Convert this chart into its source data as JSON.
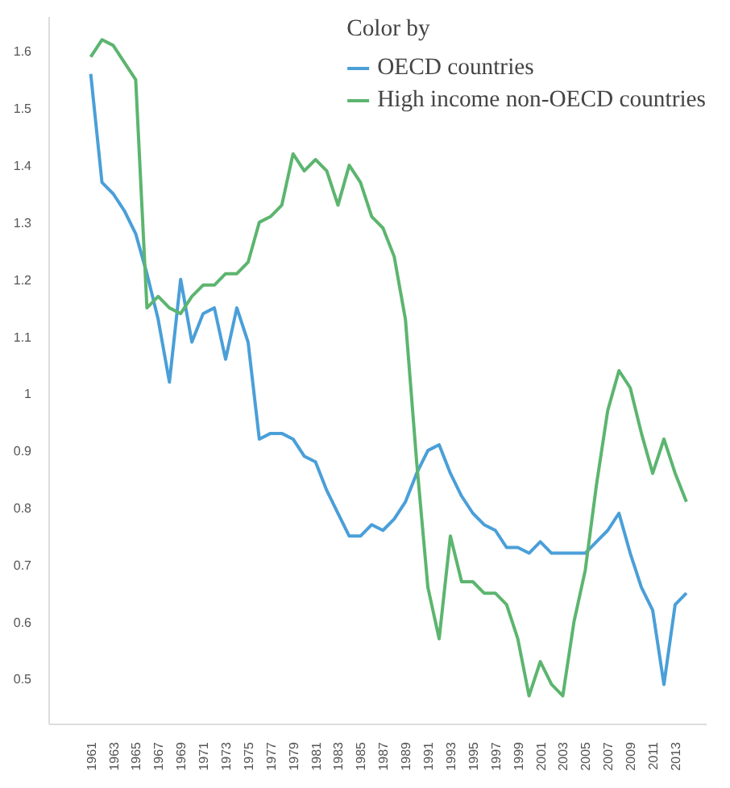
{
  "chart_data": {
    "type": "line",
    "legend_title": "Color by",
    "legend": "top right",
    "grid": false,
    "marker": "none",
    "line_style": "solid",
    "x": [
      1961,
      1962,
      1963,
      1964,
      1965,
      1966,
      1967,
      1968,
      1969,
      1970,
      1971,
      1972,
      1973,
      1974,
      1975,
      1976,
      1977,
      1978,
      1979,
      1980,
      1981,
      1982,
      1983,
      1984,
      1985,
      1986,
      1987,
      1988,
      1989,
      1990,
      1991,
      1992,
      1993,
      1994,
      1995,
      1996,
      1997,
      1998,
      1999,
      2000,
      2001,
      2002,
      2003,
      2004,
      2005,
      2006,
      2007,
      2008,
      2009,
      2010,
      2011,
      2012,
      2013,
      2014
    ],
    "series": [
      {
        "name": "OECD countries",
        "color": "#4a9fd8",
        "values": [
          1.56,
          1.37,
          1.35,
          1.32,
          1.28,
          1.21,
          1.13,
          1.02,
          1.2,
          1.09,
          1.14,
          1.15,
          1.06,
          1.15,
          1.09,
          0.92,
          0.93,
          0.93,
          0.92,
          0.89,
          0.88,
          0.83,
          0.79,
          0.75,
          0.75,
          0.77,
          0.76,
          0.78,
          0.81,
          0.86,
          0.9,
          0.91,
          0.86,
          0.82,
          0.79,
          0.77,
          0.76,
          0.73,
          0.73,
          0.72,
          0.74,
          0.72,
          0.72,
          0.72,
          0.72,
          0.74,
          0.76,
          0.79,
          0.72,
          0.66,
          0.62,
          0.49,
          0.63,
          0.65
        ]
      },
      {
        "name": "High income non-OECD countries",
        "color": "#5cb56f",
        "values": [
          1.59,
          1.62,
          1.61,
          1.58,
          1.55,
          1.15,
          1.17,
          1.15,
          1.14,
          1.17,
          1.19,
          1.19,
          1.21,
          1.21,
          1.23,
          1.3,
          1.31,
          1.33,
          1.42,
          1.39,
          1.41,
          1.39,
          1.33,
          1.4,
          1.37,
          1.31,
          1.29,
          1.24,
          1.13,
          0.88,
          0.66,
          0.57,
          0.75,
          0.67,
          0.67,
          0.65,
          0.65,
          0.63,
          0.57,
          0.47,
          0.53,
          0.49,
          0.47,
          0.6,
          0.69,
          0.84,
          0.97,
          1.04,
          1.01,
          0.93,
          0.86,
          0.92,
          0.86,
          0.81
        ]
      }
    ],
    "xlim": [
      1957.3,
      2015.8
    ],
    "xticks": [
      1961,
      1963,
      1965,
      1967,
      1969,
      1971,
      1973,
      1975,
      1977,
      1979,
      1981,
      1983,
      1985,
      1987,
      1989,
      1991,
      1993,
      1995,
      1997,
      1999,
      2001,
      2003,
      2005,
      2007,
      2009,
      2011,
      2013
    ],
    "ylim": [
      0.42,
      1.66
    ],
    "yticks": [
      0.5,
      0.6,
      0.7,
      0.8,
      0.9,
      1,
      1.1,
      1.2,
      1.3,
      1.4,
      1.5,
      1.6
    ]
  }
}
